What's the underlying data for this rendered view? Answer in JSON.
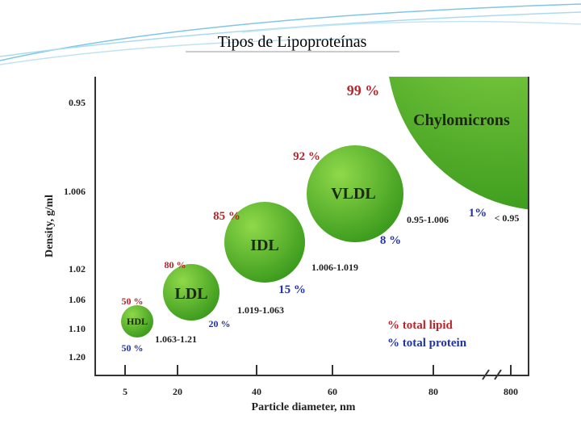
{
  "title": "Tipos de Lipoproteínas",
  "y_axis": {
    "label": "Density, g/ml",
    "ticks": [
      "0.95",
      "1.006",
      "1.02",
      "1.06",
      "1.10",
      "1.20"
    ]
  },
  "x_axis": {
    "label": "Particle diameter, nm",
    "ticks": [
      "5",
      "20",
      "40",
      "60",
      "80",
      "800"
    ]
  },
  "particles": [
    {
      "name": "Chylomicrons",
      "lipid": "99 %",
      "protein": "1%",
      "density": "< 0.95"
    },
    {
      "name": "VLDL",
      "lipid": "92 %",
      "protein": "8 %",
      "density": "0.95-1.006"
    },
    {
      "name": "IDL",
      "lipid": "85 %",
      "protein": "15 %",
      "density": "1.006-1.019"
    },
    {
      "name": "LDL",
      "lipid": "80 %",
      "protein": "20 %",
      "density": "1.019-1.063"
    },
    {
      "name": "HDL",
      "lipid": "50 %",
      "protein": "50 %",
      "density": "1.063-1.21"
    }
  ],
  "legend": {
    "lipid": "% total lipid",
    "protein": "% total protein"
  }
}
